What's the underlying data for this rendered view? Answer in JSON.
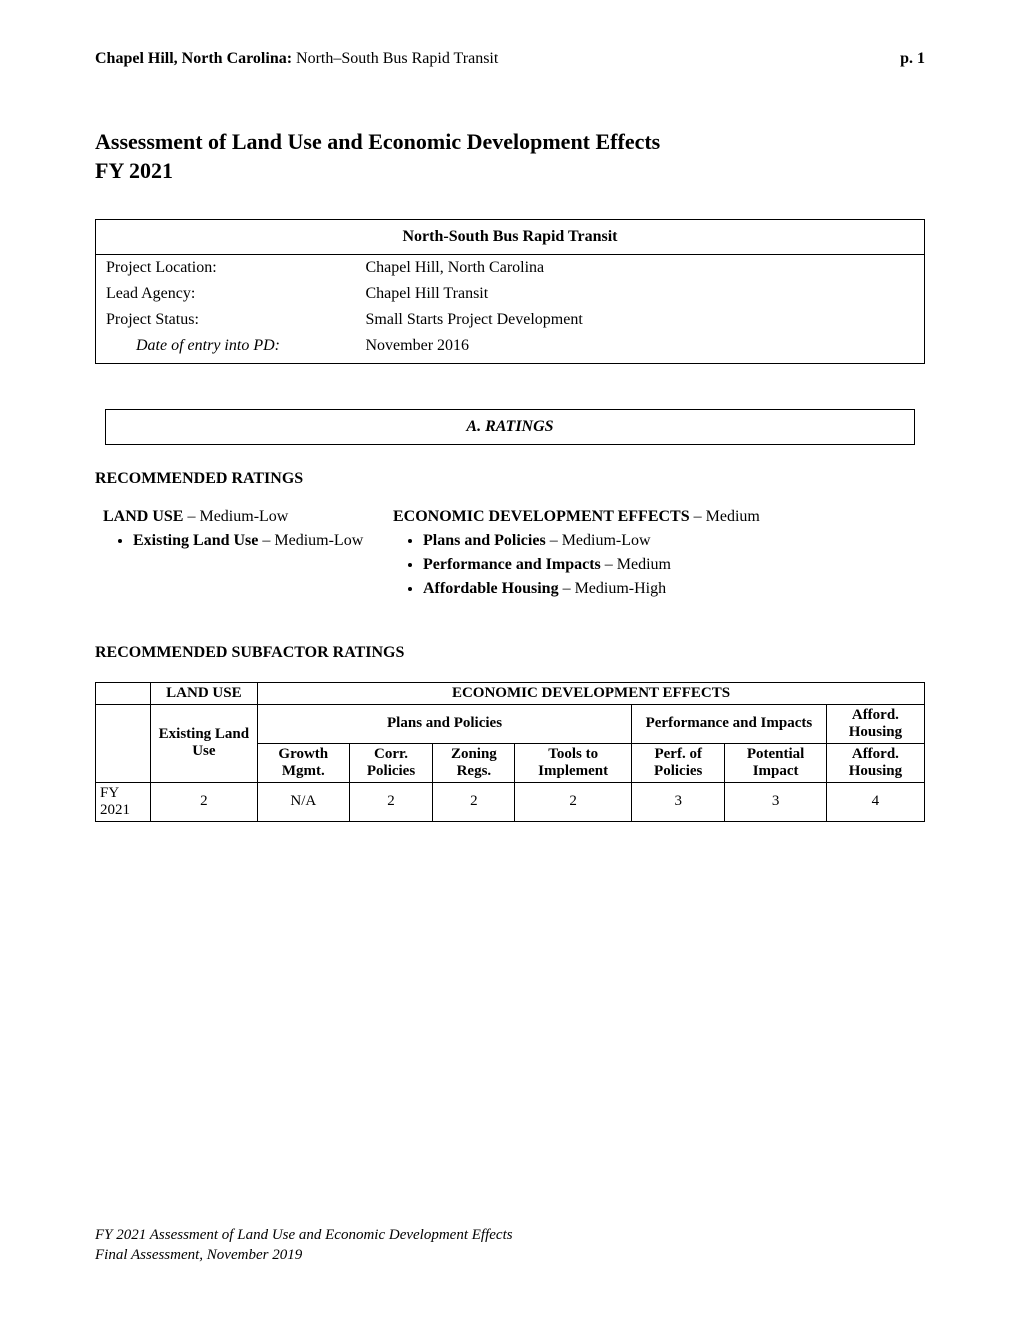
{
  "header": {
    "location_bold": "Chapel Hill, North Carolina:",
    "location_rest": " North–South Bus Rapid Transit",
    "page": "p. 1"
  },
  "title": "Assessment of Land Use and Economic Development Effects",
  "fiscal_year": "FY 2021",
  "project": {
    "name": "North-South Bus Rapid Transit",
    "rows": [
      {
        "label": "Project Location:",
        "value": "Chapel Hill, North Carolina",
        "italic": false
      },
      {
        "label": "Lead Agency:",
        "value": "Chapel Hill Transit",
        "italic": false
      },
      {
        "label": "Project Status:",
        "value": "Small Starts Project Development",
        "italic": false
      },
      {
        "label": "Date of entry into PD:",
        "value": "November 2016",
        "italic": true
      }
    ]
  },
  "ratings_section_label": "A.   RATINGS",
  "recommended_ratings_heading": "RECOMMENDED RATINGS",
  "land_use": {
    "heading_bold": "LAND USE",
    "heading_rating": " – Medium-Low",
    "bullets": [
      {
        "bold": "Existing Land Use",
        "rest": " – Medium-Low"
      }
    ]
  },
  "econ_dev": {
    "heading_bold": "ECONOMIC DEVELOPMENT EFFECTS",
    "heading_rating": " – Medium",
    "bullets": [
      {
        "bold": "Plans and Policies",
        "rest": " – Medium-Low"
      },
      {
        "bold": "Performance and Impacts",
        "rest": " – Medium"
      },
      {
        "bold": "Affordable Housing",
        "rest": " – Medium-High"
      }
    ]
  },
  "subfactor_heading": "RECOMMENDED SUBFACTOR RATINGS",
  "subfactor_table": {
    "top_group_land": "LAND USE",
    "top_group_econ": "ECONOMIC DEVELOPMENT EFFECTS",
    "mid_plans": "Plans and Policies",
    "mid_perf": "Performance and Impacts",
    "mid_afford": "Afford. Housing",
    "cols": [
      "Existing Land Use",
      "Growth Mgmt.",
      "Corr. Policies",
      "Zoning Regs.",
      "Tools to Implement",
      "Perf. of Policies",
      "Potential Impact",
      "Afford. Housing"
    ],
    "row_label": "FY 2021",
    "values": [
      "2",
      "N/A",
      "2",
      "2",
      "2",
      "3",
      "3",
      "4"
    ]
  },
  "footer": {
    "line1": "FY 2021 Assessment of Land Use and Economic Development Effects",
    "line2": "Final Assessment, November 2019"
  }
}
